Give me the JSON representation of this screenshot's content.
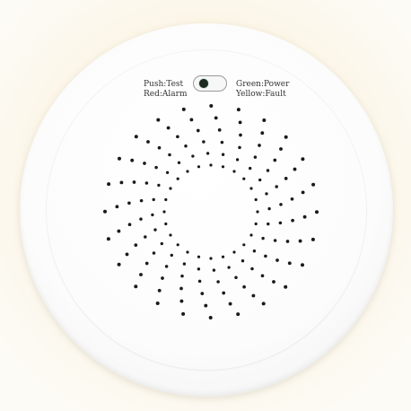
{
  "device": {
    "labels": {
      "push_test": "Push:Test",
      "red_alarm": "Red:Alarm",
      "green_power": "Green:Power",
      "yellow_fault": "Yellow:Fault"
    },
    "colors": {
      "body": "#ffffff",
      "dots": "#1a1a1a",
      "led": "#1e2a22"
    },
    "vent_pattern": {
      "arms": 24,
      "dots_per_arm": 6
    }
  }
}
